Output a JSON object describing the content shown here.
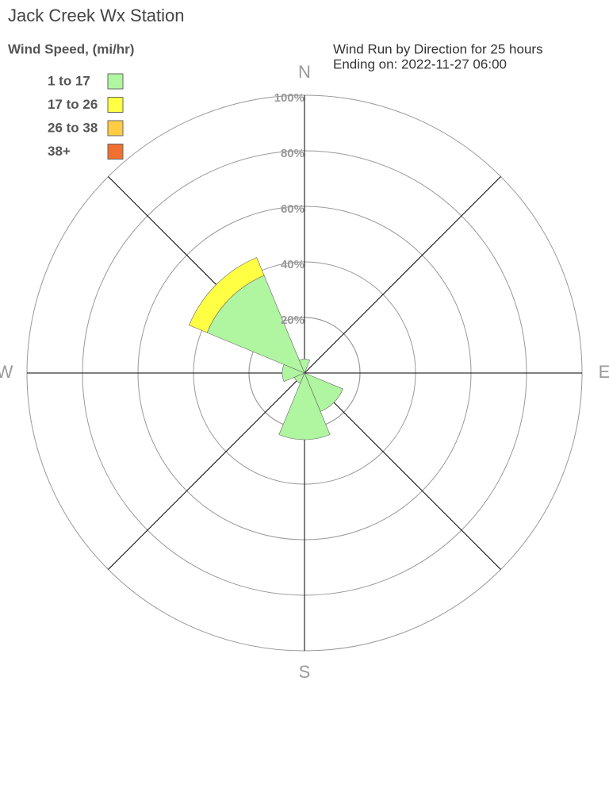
{
  "chart_data": {
    "type": "windrose",
    "title": "Jack Creek Wx Station",
    "subtitle": [
      "Wind Run by Direction for 25 hours",
      "Ending on: 2022-11-27 06:00"
    ],
    "legend_title": "Wind Speed, (mi/hr)",
    "categories": [
      "N",
      null,
      "E",
      null,
      "S",
      null,
      "W",
      null
    ],
    "series": [
      {
        "name": "1 to 17",
        "color": "#b0f5a0",
        "values": [
          5,
          0,
          0,
          15,
          24,
          4,
          8,
          38
        ]
      },
      {
        "name": "17 to 26",
        "color": "#ffff44",
        "values": [
          0,
          0,
          0,
          0,
          0,
          0,
          0,
          7
        ]
      },
      {
        "name": "26 to 38",
        "color": "#ffcc44",
        "values": [
          0,
          0,
          0,
          0,
          0,
          0,
          0,
          0
        ]
      },
      {
        "name": "38+",
        "color": "#f07030",
        "values": [
          0,
          0,
          0,
          0,
          0,
          0,
          0,
          0
        ]
      }
    ],
    "rlim": [
      0,
      100
    ],
    "rticks": [
      {
        "value": 20,
        "label": "20%"
      },
      {
        "value": 40,
        "label": "40%"
      },
      {
        "value": 60,
        "label": "60%"
      },
      {
        "value": 80,
        "label": "80%"
      },
      {
        "value": 100,
        "label": "100%"
      }
    ]
  }
}
